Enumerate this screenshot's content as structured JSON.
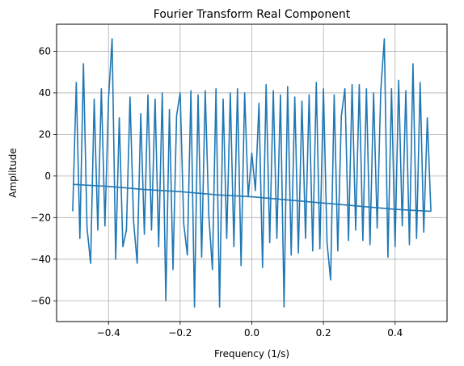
{
  "chart_data": {
    "type": "line",
    "title": "Fourier Transform Real Component",
    "xlabel": "Frequency (1/s)",
    "ylabel": "Amplitude",
    "xlim": [
      -0.545,
      0.545
    ],
    "ylim": [
      -70,
      73
    ],
    "xticks": [
      -0.4,
      -0.2,
      0.0,
      0.2,
      0.4
    ],
    "xtick_labels": [
      "−0.4",
      "−0.2",
      "0.0",
      "0.2",
      "0.4"
    ],
    "yticks": [
      -60,
      -40,
      -20,
      0,
      20,
      40,
      60
    ],
    "ytick_labels": [
      "−60",
      "−40",
      "−20",
      "0",
      "20",
      "40",
      "60"
    ],
    "grid": true,
    "series": [
      {
        "color": "#1f77b4",
        "x": [
          -0.5,
          -0.49,
          -0.48,
          -0.47,
          -0.46,
          -0.45,
          -0.44,
          -0.43,
          -0.42,
          -0.41,
          -0.4,
          -0.39,
          -0.38,
          -0.37,
          -0.36,
          -0.35,
          -0.34,
          -0.33,
          -0.32,
          -0.31,
          -0.3,
          -0.29,
          -0.28,
          -0.27,
          -0.26,
          -0.25,
          -0.24,
          -0.23,
          -0.22,
          -0.21,
          -0.2,
          -0.19,
          -0.18,
          -0.17,
          -0.16,
          -0.15,
          -0.14,
          -0.13,
          -0.12,
          -0.11,
          -0.1,
          -0.09,
          -0.08,
          -0.07,
          -0.06,
          -0.05,
          -0.04,
          -0.03,
          -0.02,
          -0.01,
          0.0,
          0.01,
          0.02,
          0.03,
          0.04,
          0.05,
          0.06,
          0.07,
          0.08,
          0.09,
          0.1,
          0.11,
          0.12,
          0.13,
          0.14,
          0.15,
          0.16,
          0.17,
          0.18,
          0.19,
          0.2,
          0.21,
          0.22,
          0.23,
          0.24,
          0.25,
          0.26,
          0.27,
          0.28,
          0.29,
          0.3,
          0.31,
          0.32,
          0.33,
          0.34,
          0.35,
          0.36,
          0.37,
          0.38,
          0.39,
          0.4,
          0.41,
          0.42,
          0.43,
          0.44,
          0.45,
          0.46,
          0.47,
          0.48,
          0.49,
          0.5
        ],
        "y": [
          -17,
          45,
          -30,
          54,
          -25,
          -42,
          37,
          -26,
          42,
          -24,
          37,
          66,
          -40,
          28,
          -34,
          -26,
          38,
          -22,
          -42,
          30,
          -28,
          39,
          -26,
          37,
          -34,
          40,
          -60,
          32,
          -45,
          29,
          40,
          -23,
          -38,
          41,
          -63,
          39,
          -39,
          41,
          -19,
          -45,
          42,
          -63,
          37,
          -30,
          40,
          -34,
          42,
          -43,
          40,
          -10,
          11,
          -7,
          35,
          -44,
          44,
          -32,
          41,
          -30,
          39,
          -63,
          43,
          -38,
          38,
          -37,
          36,
          -30,
          39,
          -36,
          45,
          -35,
          42,
          -32,
          -50,
          39,
          -36,
          29,
          42,
          -31,
          44,
          -26,
          44,
          -31,
          42,
          -33,
          40,
          -25,
          41,
          66,
          -39,
          42,
          -34,
          46,
          -24,
          41,
          -33,
          54,
          -30,
          45,
          -27,
          28,
          -17
        ]
      },
      {
        "color": "#1f77b4",
        "x": [
          -0.5,
          -0.4,
          -0.3,
          -0.2,
          -0.1,
          0.0,
          0.1,
          0.2,
          0.3,
          0.4,
          0.5
        ],
        "y": [
          -4,
          -5,
          -6.5,
          -7.5,
          -9,
          -10,
          -11.5,
          -13,
          -14.5,
          -16,
          -17
        ]
      }
    ]
  }
}
